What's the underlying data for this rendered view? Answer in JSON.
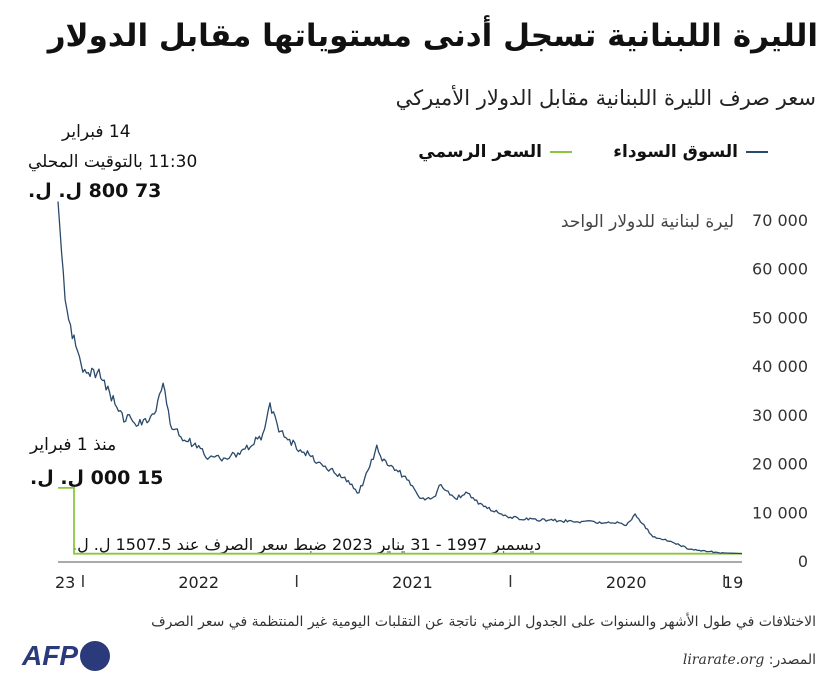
{
  "title": "الليرة اللبنانية تسجل أدنى مستوياتها مقابل الدولار",
  "subtitle": "سعر صرف الليرة اللبنانية مقابل الدولار الأميركي",
  "legend": {
    "black_market": "السوق السوداء",
    "official": "السعر الرسمي",
    "black_market_color": "#2b4a6b",
    "official_color": "#8cc63f"
  },
  "annotations": {
    "peak_date": "14 فبراير",
    "peak_time": "11:30 بالتوقيت المحلي",
    "peak_value": "73 800 ل. ل.",
    "official_since": "منذ 1 فبراير",
    "official_new_value": "15 000 ل. ل.",
    "official_old_note": "ديسمبر 1997 - 31 يناير 2023 ضبط سعر الصرف عند 1507.5 ل. ل."
  },
  "unit_label": "ليرة لبنانية للدولار الواحد",
  "note": "الاختلافات في طول الأشهر والسنوات على الجدول الزمني ناتجة عن التقلبات اليومية غير المنتظمة في سعر الصرف",
  "source_label": "المصدر:",
  "source_site": "lirarate.org",
  "logo": "AFP",
  "chart_data": {
    "type": "line",
    "title": "الليرة اللبنانية تسجل أدنى مستوياتها مقابل الدولار",
    "ylabel": "ليرة لبنانية للدولار الواحد",
    "ylim": [
      0,
      70000
    ],
    "y_ticks": [
      0,
      10000,
      20000,
      30000,
      40000,
      50000,
      60000,
      70000
    ],
    "y_tick_labels": [
      "0",
      "10 000",
      "20 000",
      "30 000",
      "40 000",
      "50 000",
      "60 000",
      "70 000"
    ],
    "x_direction": "right-to-left",
    "x_year_labels": [
      {
        "label": "19",
        "t": 0.5
      },
      {
        "label": "2020",
        "t": 6.5
      },
      {
        "label": "2021",
        "t": 18.5
      },
      {
        "label": "2022",
        "t": 30.5
      },
      {
        "label": "23",
        "t": 38.0
      }
    ],
    "x_year_separators": [
      1,
      13,
      25,
      37
    ],
    "xlim": [
      0,
      38.4
    ],
    "series": [
      {
        "name": "السوق السوداء",
        "color": "#2b4a6b",
        "points": [
          [
            0.0,
            1520
          ],
          [
            1.0,
            1650
          ],
          [
            2.0,
            2000
          ],
          [
            3.0,
            2500
          ],
          [
            4.0,
            4000
          ],
          [
            5.0,
            5000
          ],
          [
            6.0,
            9500
          ],
          [
            6.5,
            7500
          ],
          [
            7.0,
            7800
          ],
          [
            8.0,
            7900
          ],
          [
            9.0,
            8100
          ],
          [
            10.0,
            8200
          ],
          [
            11.0,
            8400
          ],
          [
            12.0,
            8600
          ],
          [
            13.0,
            9000
          ],
          [
            14.0,
            10500
          ],
          [
            15.0,
            12500
          ],
          [
            15.5,
            14000
          ],
          [
            16.0,
            13000
          ],
          [
            17.0,
            15500
          ],
          [
            17.3,
            12800
          ],
          [
            18.0,
            12500
          ],
          [
            19.0,
            17500
          ],
          [
            20.0,
            20000
          ],
          [
            20.5,
            23000
          ],
          [
            21.0,
            19000
          ],
          [
            21.5,
            14000
          ],
          [
            22.0,
            16000
          ],
          [
            23.0,
            18500
          ],
          [
            24.0,
            21000
          ],
          [
            25.0,
            23500
          ],
          [
            26.0,
            27000
          ],
          [
            26.5,
            31500
          ],
          [
            27.0,
            25500
          ],
          [
            28.0,
            22500
          ],
          [
            29.0,
            21000
          ],
          [
            30.0,
            21500
          ],
          [
            31.0,
            24500
          ],
          [
            32.0,
            27000
          ],
          [
            32.5,
            37000
          ],
          [
            33.0,
            30000
          ],
          [
            34.0,
            28500
          ],
          [
            35.0,
            30000
          ],
          [
            35.5,
            35000
          ],
          [
            36.0,
            38000
          ],
          [
            37.0,
            40000
          ],
          [
            37.5,
            45000
          ],
          [
            38.0,
            55000
          ],
          [
            38.2,
            65000
          ],
          [
            38.4,
            73800
          ]
        ]
      },
      {
        "name": "السعر الرسمي",
        "color": "#8cc63f",
        "points": [
          [
            0.0,
            1507.5
          ],
          [
            37.5,
            1507.5
          ],
          [
            37.5,
            15000
          ],
          [
            38.4,
            15000
          ]
        ]
      }
    ]
  }
}
